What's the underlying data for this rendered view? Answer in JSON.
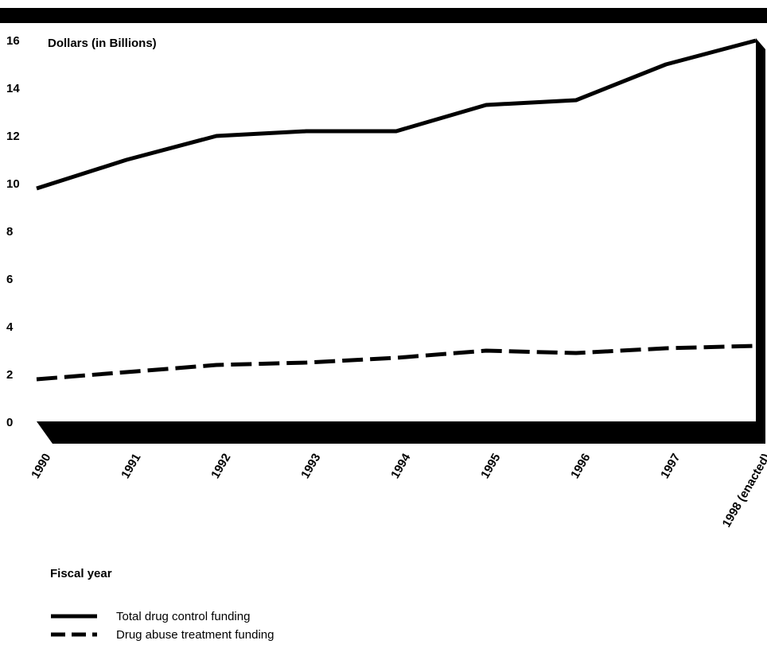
{
  "chart_data": {
    "type": "line",
    "ylabel": "Dollars (in Billions)",
    "xlabel": "Fiscal year",
    "categories": [
      "1990",
      "1991",
      "1992",
      "1993",
      "1994",
      "1995",
      "1996",
      "1997",
      "1998 (enacted)"
    ],
    "yticks": [
      "0",
      "2",
      "4",
      "6",
      "8",
      "10",
      "12",
      "14",
      "16"
    ],
    "ylim": [
      0,
      16
    ],
    "grid": false,
    "legend_position": "bottom-left",
    "series": [
      {
        "name": "Total drug control funding",
        "style": "solid",
        "values": [
          9.8,
          11.0,
          12.0,
          12.2,
          12.2,
          13.3,
          13.5,
          15.0,
          16.0
        ]
      },
      {
        "name": "Drug abuse treatment funding",
        "style": "dashed",
        "values": [
          1.8,
          2.1,
          2.4,
          2.5,
          2.7,
          3.0,
          2.9,
          3.1,
          3.2
        ]
      }
    ]
  },
  "colors": {
    "line": "#000000",
    "frame": "#000000",
    "background": "#ffffff"
  }
}
